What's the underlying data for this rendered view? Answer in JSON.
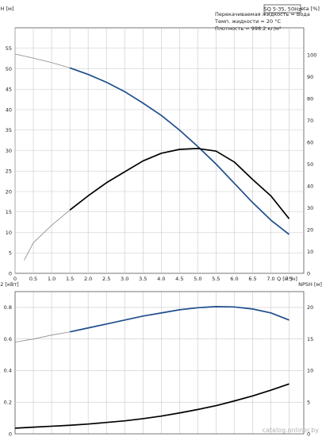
{
  "info": {
    "model": "SQ 5-35, 50Hz",
    "line1": "Перекачиваемая жидкость = Вода",
    "line2": "Темп. жидкости = 20 °C",
    "line3": "Плотность = 998.2 кг/м³"
  },
  "watermark": "catalog.onliner.by",
  "chart_data": [
    {
      "type": "line",
      "xlabel": "Q [м³/ч]",
      "ylabel": "H [м]",
      "y2label": "eta [%]",
      "xlim": [
        0,
        7.9
      ],
      "ylim": [
        0,
        60
      ],
      "y2lim": [
        0,
        112.5
      ],
      "x_ticks": [
        "0",
        "0.5",
        "1.0",
        "1.5",
        "2.0",
        "2.5",
        "3.0",
        "3.5",
        "4.0",
        "4.5",
        "5.0",
        "5.5",
        "6.0",
        "6.5",
        "7.0",
        "7.5"
      ],
      "y_ticks": [
        "0",
        "5",
        "10",
        "15",
        "20",
        "25",
        "30",
        "35",
        "40",
        "45",
        "50",
        "55"
      ],
      "y2_ticks": [
        "0",
        "10",
        "20",
        "30",
        "40",
        "50",
        "60",
        "70",
        "80",
        "90",
        "100"
      ],
      "grid": true,
      "series": [
        {
          "name": "H",
          "axis": "left",
          "color": "#1f4e8c",
          "x": [
            0,
            0.5,
            1.0,
            1.5,
            2.0,
            2.5,
            3.0,
            3.5,
            4.0,
            4.5,
            5.0,
            5.5,
            6.0,
            6.5,
            7.0,
            7.5
          ],
          "y": [
            53.6,
            52.6,
            51.5,
            50.2,
            48.6,
            46.7,
            44.4,
            41.6,
            38.6,
            35.0,
            31.0,
            26.7,
            22.0,
            17.3,
            13.0,
            9.5
          ]
        },
        {
          "name": "eta",
          "axis": "right",
          "color": "#000000",
          "x": [
            0.25,
            0.5,
            1.0,
            1.5,
            2.0,
            2.5,
            3.0,
            3.5,
            4.0,
            4.5,
            5.0,
            5.5,
            6.0,
            6.5,
            7.0,
            7.5
          ],
          "y": [
            6.0,
            14.0,
            22.0,
            29.0,
            35.5,
            41.5,
            46.5,
            51.5,
            55.0,
            56.8,
            57.2,
            56.0,
            51.0,
            43.0,
            35.5,
            25.0
          ]
        }
      ]
    },
    {
      "type": "line",
      "xlabel": "",
      "ylabel": "P2 [кВт]",
      "y2label": "NPSH [м]",
      "xlim": [
        0,
        7.9
      ],
      "ylim": [
        0,
        0.9
      ],
      "y2lim": [
        0,
        22.5
      ],
      "y_ticks": [
        "0",
        "0.2",
        "0.4",
        "0.6",
        "0.8"
      ],
      "y2_ticks": [
        "0",
        "5",
        "10",
        "15",
        "20"
      ],
      "grid": true,
      "series": [
        {
          "name": "P2",
          "axis": "left",
          "color": "#1f4e8c",
          "x": [
            0,
            0.5,
            1.0,
            1.5,
            2.0,
            2.5,
            3.0,
            3.5,
            4.0,
            4.5,
            5.0,
            5.5,
            6.0,
            6.5,
            7.0,
            7.5
          ],
          "y": [
            0.58,
            0.6,
            0.625,
            0.645,
            0.67,
            0.695,
            0.72,
            0.745,
            0.765,
            0.785,
            0.798,
            0.805,
            0.803,
            0.79,
            0.765,
            0.72
          ]
        },
        {
          "name": "NPSH",
          "axis": "right",
          "color": "#000000",
          "x": [
            0,
            0.5,
            1.0,
            1.5,
            2.0,
            2.5,
            3.0,
            3.5,
            4.0,
            4.5,
            5.0,
            5.5,
            6.0,
            6.5,
            7.0,
            7.5
          ],
          "y": [
            0.9,
            1.05,
            1.2,
            1.35,
            1.55,
            1.8,
            2.05,
            2.4,
            2.8,
            3.3,
            3.85,
            4.45,
            5.2,
            6.0,
            6.9,
            7.9
          ]
        }
      ]
    }
  ],
  "colors": {
    "blue_curve": "#1f4e8c",
    "black_curve": "#000000",
    "thin_segment": "#8a8a8a",
    "grid": "#c8c8c8"
  }
}
